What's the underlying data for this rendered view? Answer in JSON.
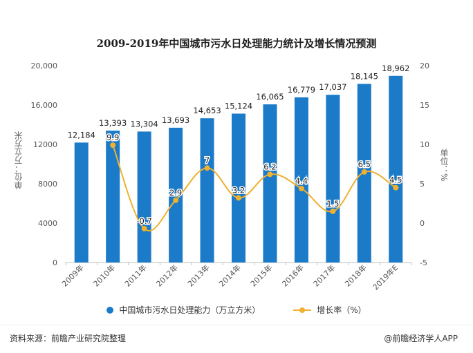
{
  "title": "2009-2019年中国城市污水日处理能力统计及增长情况预测",
  "footer": {
    "source": "资料来源：前瞻产业研究院整理",
    "brand": "@前瞻经济学人APP"
  },
  "colors": {
    "bar": "#1b7bc8",
    "line": "#f0b030"
  },
  "chart_data": {
    "type": "bar",
    "categories": [
      "2009年",
      "2010年",
      "2011年",
      "2012年",
      "2013年",
      "2014年",
      "2015年",
      "2016年",
      "2017年",
      "2018年",
      "2019年E"
    ],
    "series": [
      {
        "name": "中国城市污水日处理能力（万立方米）",
        "type": "bar",
        "axis": "left",
        "values": [
          12184,
          13393,
          13304,
          13693,
          14653,
          15124,
          16065,
          16779,
          17037,
          18145,
          18962
        ],
        "labels": [
          "12,184",
          "13,393",
          "13,304",
          "13,693",
          "14,653",
          "15,124",
          "16,065",
          "16,779",
          "17,037",
          "18,145",
          "18,962"
        ]
      },
      {
        "name": "增长率（%）",
        "type": "line",
        "axis": "right",
        "values": [
          null,
          9.9,
          -0.7,
          2.9,
          7,
          3.2,
          6.2,
          4.4,
          1.5,
          6.5,
          4.5
        ],
        "labels": [
          "",
          "9.9",
          "-0.7",
          "2.9",
          "7",
          "3.2",
          "6.2",
          "4.4",
          "1.5",
          "6.5",
          "4.5"
        ]
      }
    ],
    "ylabel_left": "单位：万立方米",
    "ylabel_right": "单位：%",
    "ylim_left": [
      0,
      20000
    ],
    "yticks_left": [
      "0",
      "4000",
      "8000",
      "12000",
      "16,000",
      "20,000"
    ],
    "ylim_right": [
      -5,
      20
    ],
    "yticks_right": [
      "-5",
      "0",
      "5",
      "10",
      "15",
      "20"
    ],
    "grid": false,
    "legend": "bottom"
  }
}
